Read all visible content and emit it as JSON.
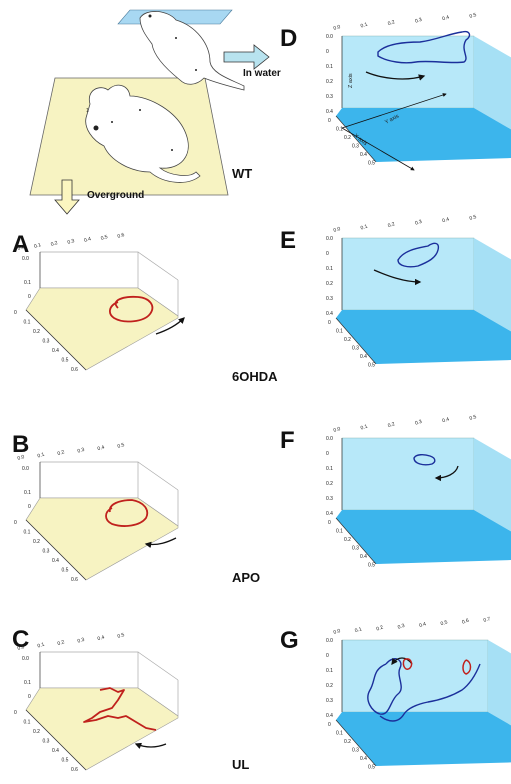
{
  "panel_letters": {
    "a": "A",
    "b": "B",
    "c": "C",
    "d": "D",
    "e": "E",
    "f": "F",
    "g": "G"
  },
  "conditions": {
    "wt": "WT",
    "ohda": "6OHDA",
    "apo": "APO",
    "ul": "UL"
  },
  "arrow_labels": {
    "overground": "Overground",
    "in_water": "In water"
  },
  "axis_titles": {
    "z": "Z axis",
    "y": "Y axis",
    "x": "X axis"
  },
  "ticks": {
    "top_06": [
      "0.0",
      "0.1",
      "0.2",
      "0.3",
      "0.4",
      "0.5",
      "0.6"
    ],
    "top_05": [
      "0.0",
      "0.1",
      "0.2",
      "0.3",
      "0.4",
      "0.5"
    ],
    "top_07": [
      "0.0",
      "0.1",
      "0.2",
      "0.3",
      "0.4",
      "0.5",
      "0.6",
      "0.7"
    ],
    "z": [
      "0",
      "0.1",
      "0.2"
    ],
    "z_water": [
      "0.0",
      "0",
      "0.1",
      "0.2",
      "0.3",
      "0.4"
    ],
    "x": [
      "0",
      "0.1",
      "0.2",
      "0.3",
      "0.4",
      "0.5",
      "0.6"
    ]
  },
  "colors": {
    "ground": "#f7f3c2",
    "water_top": "#b7e8f9",
    "water_bottom": "#3cb5ec",
    "track_land": "#c0211d",
    "track_water": "#1b2f9b",
    "arrow_fill": "#fbf6c0",
    "arrow_water": "#b8e3ef"
  }
}
